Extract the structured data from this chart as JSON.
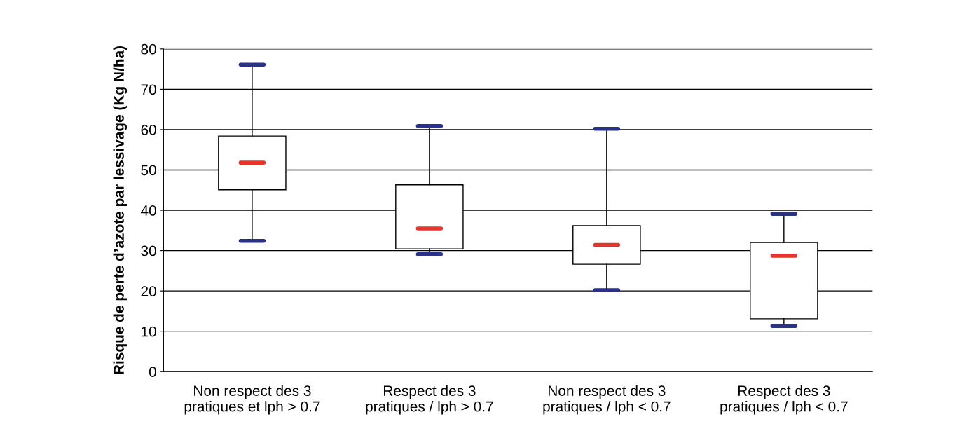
{
  "chart_data": {
    "type": "box",
    "ylabel": "Risque de perte d’azote par lessivage (Kg N/ha)",
    "categories": [
      "Non respect des 3\npratiques et lph > 0.7",
      "Respect des 3\npratiques / lph > 0.7",
      "Non respect des 3\npratiques / lph < 0.7",
      "Respect des 3\npratiques / lph < 0.7"
    ],
    "series": [
      {
        "boxes": [
          {
            "low": 32.4,
            "q1": 45.1,
            "median": 51.8,
            "q3": 58.4,
            "high": 76.1
          },
          {
            "low": 29.1,
            "q1": 30.4,
            "median": 35.5,
            "q3": 46.3,
            "high": 60.9
          },
          {
            "low": 20.2,
            "q1": 26.6,
            "median": 31.4,
            "q3": 36.2,
            "high": 60.2
          },
          {
            "low": 11.3,
            "q1": 13.1,
            "median": 28.7,
            "q3": 32.0,
            "high": 39.1
          }
        ]
      }
    ],
    "ylim": [
      0,
      80
    ],
    "yticks": [
      0,
      10,
      20,
      30,
      40,
      50,
      60,
      70,
      80
    ],
    "grid": "y"
  }
}
